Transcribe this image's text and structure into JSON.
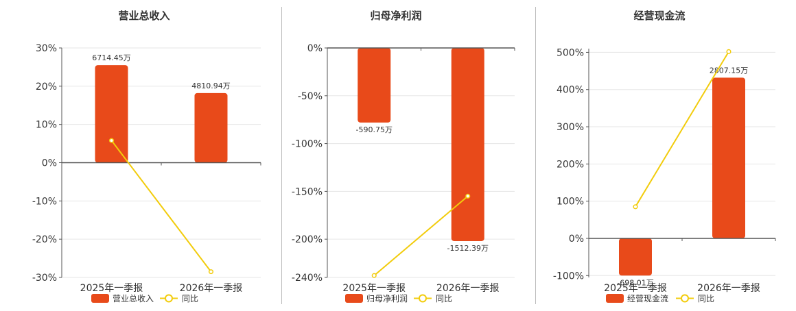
{
  "colors": {
    "bar": "#E84A1A",
    "line": "#F2CC0C",
    "grid": "#e6e6e6",
    "axis": "#555555"
  },
  "chart_data": [
    {
      "type": "bar",
      "title": "营业总收入",
      "categories": [
        "2025年一季报",
        "2026年一季报"
      ],
      "series": [
        {
          "name": "营业总收入",
          "type": "bar",
          "values": [
            25.5,
            18.2
          ],
          "labels": [
            "6714.45万",
            "4810.94万"
          ]
        },
        {
          "name": "同比",
          "type": "line",
          "values": [
            5.8,
            -28.5
          ]
        }
      ],
      "ylim": [
        -30,
        30
      ],
      "yticks": [
        30,
        20,
        10,
        0,
        -10,
        -20,
        -30
      ],
      "ytick_labels": [
        "30%",
        "20%",
        "10%",
        "0%",
        "-10%",
        "-20%",
        "-30%"
      ],
      "grid": true,
      "legend": "bottom-center"
    },
    {
      "type": "bar",
      "title": "归母净利润",
      "categories": [
        "2025年一季报",
        "2026年一季报"
      ],
      "series": [
        {
          "name": "归母净利润",
          "type": "bar",
          "values": [
            -78,
            -202
          ],
          "labels": [
            "-590.75万",
            "-1512.39万"
          ]
        },
        {
          "name": "同比",
          "type": "line",
          "values": [
            -238,
            -155
          ]
        }
      ],
      "ylim": [
        -240,
        0
      ],
      "yticks": [
        0,
        -50,
        -100,
        -150,
        -200,
        -240
      ],
      "ytick_labels": [
        "0%",
        "-50%",
        "-100%",
        "-150%",
        "-200%",
        "-240%"
      ],
      "grid": true,
      "legend": "bottom-center"
    },
    {
      "type": "bar",
      "title": "经营现金流",
      "categories": [
        "2025年一季报",
        "2026年一季报"
      ],
      "series": [
        {
          "name": "经营现金流",
          "type": "bar",
          "values": [
            -100,
            432
          ],
          "labels": [
            "-698.01万",
            "2807.15万"
          ]
        },
        {
          "name": "同比",
          "type": "line",
          "values": [
            85,
            502
          ]
        }
      ],
      "ylim": [
        -105,
        510
      ],
      "yticks": [
        500,
        400,
        300,
        200,
        100,
        0,
        -100
      ],
      "ytick_labels": [
        "500%",
        "400%",
        "300%",
        "200%",
        "100%",
        "0%",
        "-100%"
      ],
      "grid": true,
      "legend": "bottom-center"
    }
  ]
}
